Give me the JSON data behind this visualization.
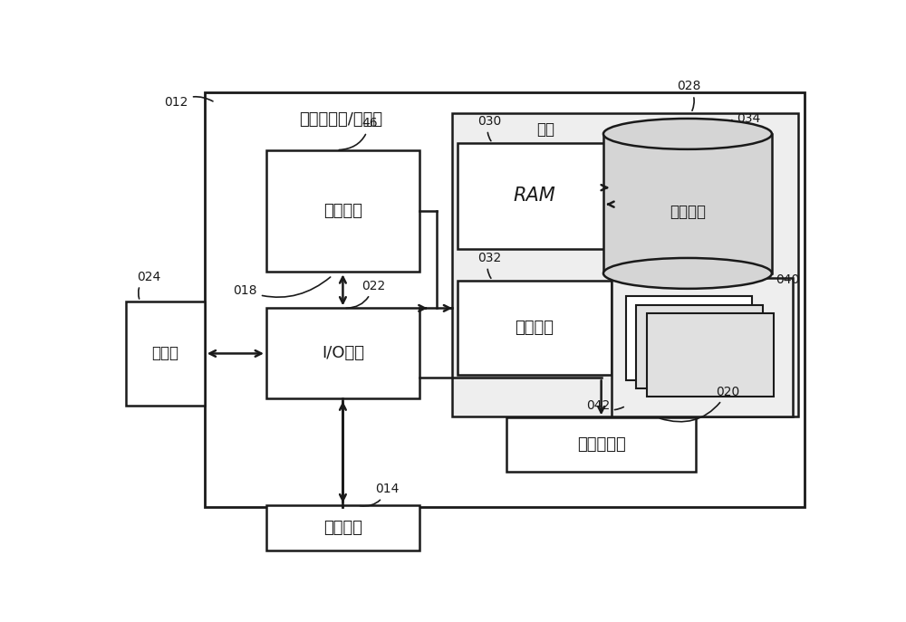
{
  "bg_color": "#ffffff",
  "line_color": "#1a1a1a",
  "title": "计算机系统/服务器",
  "box_labels": {
    "cpu": "处理单元",
    "io": "I/O接口",
    "display": "显示器",
    "external": "外部设备",
    "ram": "RAM",
    "cache": "高速缓存",
    "storage": "存储系统",
    "memory_label": "内存",
    "network": "网络适配器"
  },
  "font_size_label": 10,
  "font_size_box": 13,
  "font_size_title": 13
}
